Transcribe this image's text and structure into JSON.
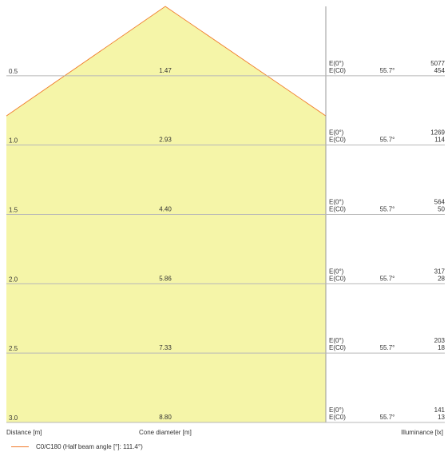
{
  "chart_data": {
    "type": "area",
    "x_axis_label": "Distance [m]",
    "middle_label": "Cone diameter [m]",
    "right_label": "Illuminance [lx]",
    "half_angle_label": "55.7°",
    "e0_label": "E(0°)",
    "ec0_label": "E(C0)",
    "rows": [
      {
        "distance": "0.5",
        "cone_diameter": "1.47",
        "e0": "5077",
        "ec0": "454"
      },
      {
        "distance": "1.0",
        "cone_diameter": "2.93",
        "e0": "1269",
        "ec0": "114"
      },
      {
        "distance": "1.5",
        "cone_diameter": "4.40",
        "e0": "564",
        "ec0": "50"
      },
      {
        "distance": "2.0",
        "cone_diameter": "5.86",
        "e0": "317",
        "ec0": "28"
      },
      {
        "distance": "2.5",
        "cone_diameter": "7.33",
        "e0": "203",
        "ec0": "18"
      },
      {
        "distance": "3.0",
        "cone_diameter": "8.80",
        "e0": "141",
        "ec0": "13"
      }
    ],
    "legend": "C0/C180 (Half beam angle [°]: 111.4°)",
    "colors": {
      "fill": "#f5f5a8",
      "beam_line": "#f07a2a",
      "grid": "#b8b8b8",
      "text": "#333333"
    }
  }
}
